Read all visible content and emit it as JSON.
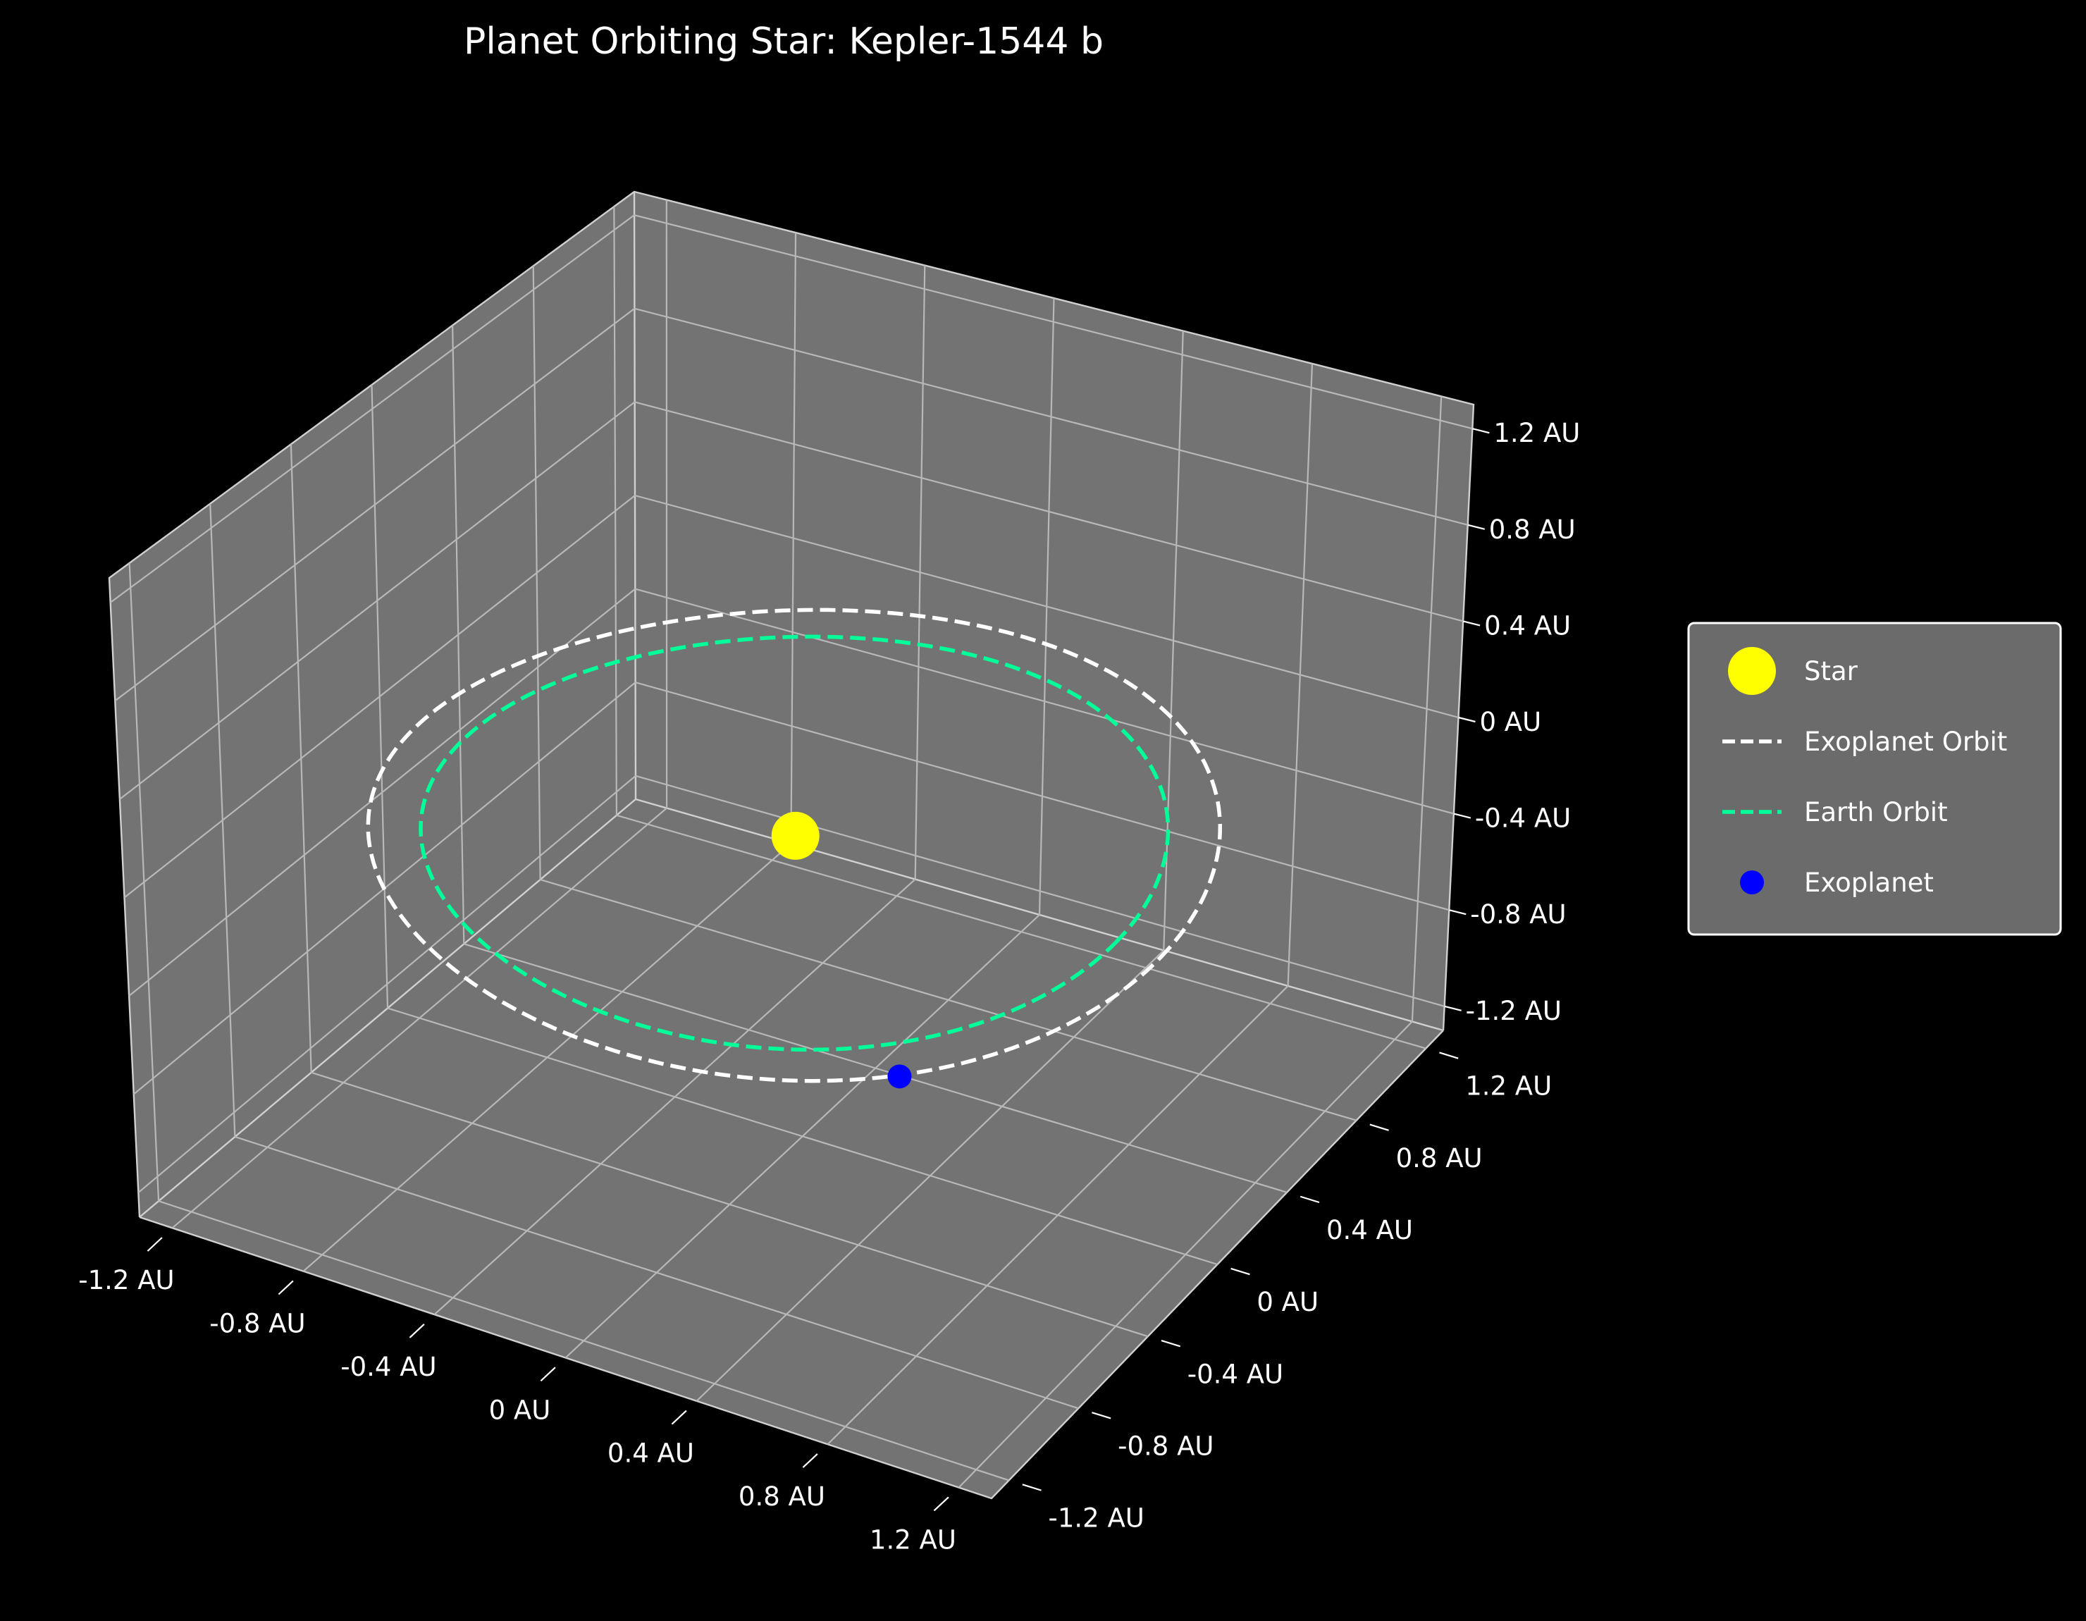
{
  "chart_data": {
    "type": "scatter",
    "projection": "3d",
    "title": "Planet Orbiting Star: Kepler-1544 b",
    "xlabel": "",
    "ylabel": "",
    "zlabel": "",
    "xlim": [
      -1.3,
      1.3
    ],
    "ylim": [
      -1.3,
      1.3
    ],
    "zlim": [
      -1.3,
      1.3
    ],
    "x_ticks": [
      "-1.2 AU",
      "-0.8 AU",
      "-0.4 AU",
      "0 AU",
      "0.4 AU",
      "0.8 AU",
      "1.2 AU"
    ],
    "y_ticks": [
      "-1.2 AU",
      "-0.8 AU",
      "-0.4 AU",
      "0 AU",
      "0.4 AU",
      "0.8 AU",
      "1.2 AU"
    ],
    "z_ticks": [
      "-1.2 AU",
      "-0.8 AU",
      "-0.4 AU",
      "0 AU",
      "0.4 AU",
      "0.8 AU",
      "1.2 AU"
    ],
    "grid": true,
    "background": "#000000",
    "pane_color": "#737373",
    "legend_position": "center-right",
    "series": [
      {
        "name": "Star",
        "kind": "point",
        "color": "#ffff00",
        "x": 0,
        "y": 0,
        "z": 0
      },
      {
        "name": "Exoplanet Orbit",
        "kind": "circle",
        "color": "#ffffff",
        "radius": 1.14,
        "z": 0,
        "dashed": true
      },
      {
        "name": "Earth Orbit",
        "kind": "circle",
        "color": "#00ff99",
        "radius": 1.0,
        "z": 0,
        "dashed": true
      },
      {
        "name": "Exoplanet",
        "kind": "point",
        "color": "#0000ff",
        "x": 0.81,
        "y": -0.81,
        "z": 0
      }
    ]
  }
}
